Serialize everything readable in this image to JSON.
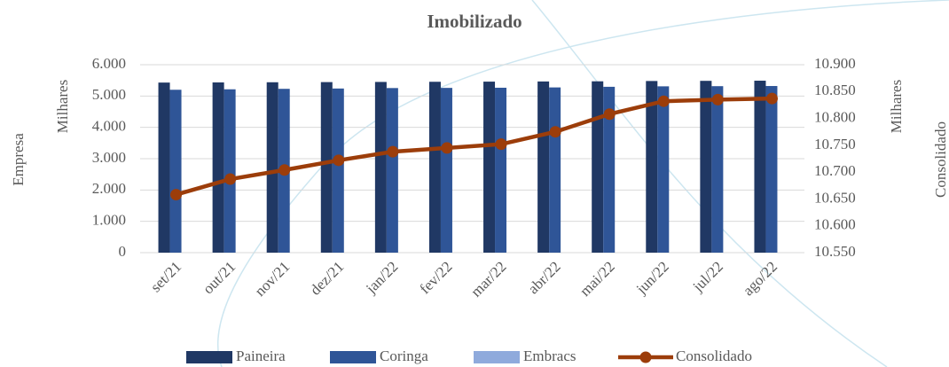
{
  "chart_data": {
    "type": "bar_line",
    "title": "Imobilizado",
    "y_label": "Empresa",
    "y_unit": "Milhares",
    "y2_label": "Consolidado",
    "y2_unit": "Milhares",
    "categories": [
      "set/21",
      "out/21",
      "nov/21",
      "dez/21",
      "jan/22",
      "fev/22",
      "mar/22",
      "abr/22",
      "mai/22",
      "jun/22",
      "jul/22",
      "ago/22"
    ],
    "series": [
      {
        "name": "Paineira",
        "color": "#203864",
        "type": "bar",
        "values": [
          5430,
          5435,
          5440,
          5445,
          5450,
          5455,
          5460,
          5465,
          5470,
          5480,
          5485,
          5490
        ]
      },
      {
        "name": "Coringa",
        "color": "#2f5597",
        "type": "bar",
        "values": [
          5200,
          5215,
          5230,
          5240,
          5255,
          5260,
          5265,
          5275,
          5295,
          5310,
          5315,
          5320
        ]
      },
      {
        "name": "Embracs",
        "color": "#8faadc",
        "type": "bar",
        "values": [
          0,
          0,
          0,
          0,
          0,
          0,
          0,
          0,
          0,
          0,
          0,
          0
        ]
      },
      {
        "name": "Consolidado",
        "color": "#9c3d0a",
        "type": "line",
        "axis": "y2",
        "values": [
          10658,
          10687,
          10704,
          10722,
          10738,
          10745,
          10752,
          10775,
          10808,
          10832,
          10835,
          10837
        ]
      }
    ],
    "ylim": [
      0,
      6000
    ],
    "yticks": [
      0,
      {
        "value": 1000,
        "label": "1.000"
      },
      {
        "value": 2000,
        "label": "2.000"
      },
      {
        "value": 3000,
        "label": "3.000"
      },
      {
        "value": 4000,
        "label": "4.000"
      },
      {
        "value": 5000,
        "label": "5.000"
      },
      {
        "value": 6000,
        "label": "6.000"
      }
    ],
    "y2lim": [
      10550,
      10900
    ],
    "y2ticks": [
      {
        "value": 10550,
        "label": "10.550"
      },
      {
        "value": 10600,
        "label": "10.600"
      },
      {
        "value": 10650,
        "label": "10.650"
      },
      {
        "value": 10700,
        "label": "10.700"
      },
      {
        "value": 10750,
        "label": "10.750"
      },
      {
        "value": 10800,
        "label": "10.800"
      },
      {
        "value": 10850,
        "label": "10.850"
      },
      {
        "value": 10900,
        "label": "10.900"
      }
    ],
    "grid": true,
    "legend": "bottom"
  }
}
